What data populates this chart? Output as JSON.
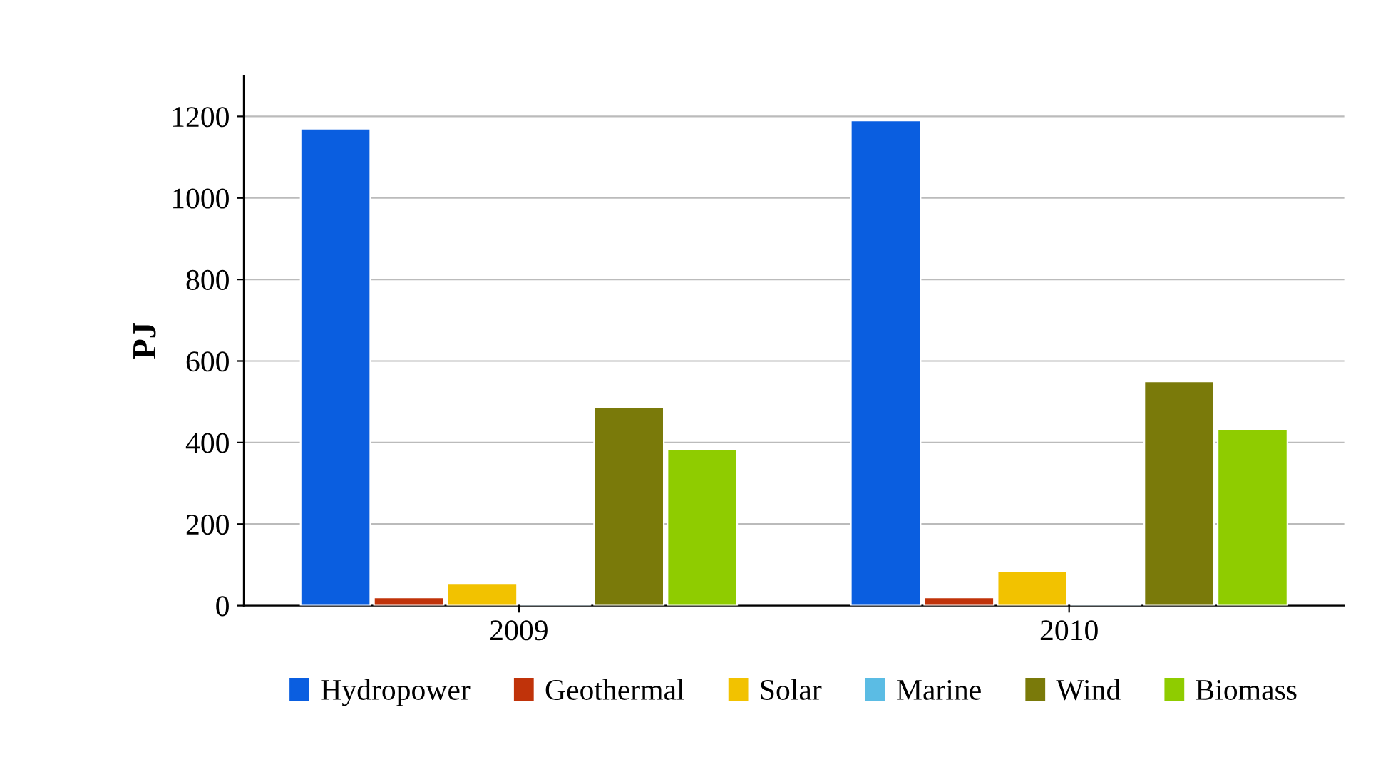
{
  "chart_data": {
    "type": "bar",
    "ylabel": "PJ",
    "categories": [
      "2009",
      "2010"
    ],
    "series": [
      {
        "name": "Hydropower",
        "color": "#0a5ee0",
        "values": [
          1170,
          1190
        ]
      },
      {
        "name": "Geothermal",
        "color": "#c0330a",
        "values": [
          20,
          20
        ]
      },
      {
        "name": "Solar",
        "color": "#f2c200",
        "values": [
          55,
          85
        ]
      },
      {
        "name": "Marine",
        "color": "#5bbce4",
        "values": [
          2,
          2
        ]
      },
      {
        "name": "Wind",
        "color": "#7a7a0a",
        "values": [
          487,
          550
        ]
      },
      {
        "name": "Biomass",
        "color": "#8fcc00",
        "values": [
          383,
          433
        ]
      }
    ],
    "ylim": [
      0,
      1300
    ],
    "yticks": [
      0,
      200,
      400,
      600,
      800,
      1000,
      1200
    ],
    "grid": "y",
    "legend": "bottom"
  }
}
